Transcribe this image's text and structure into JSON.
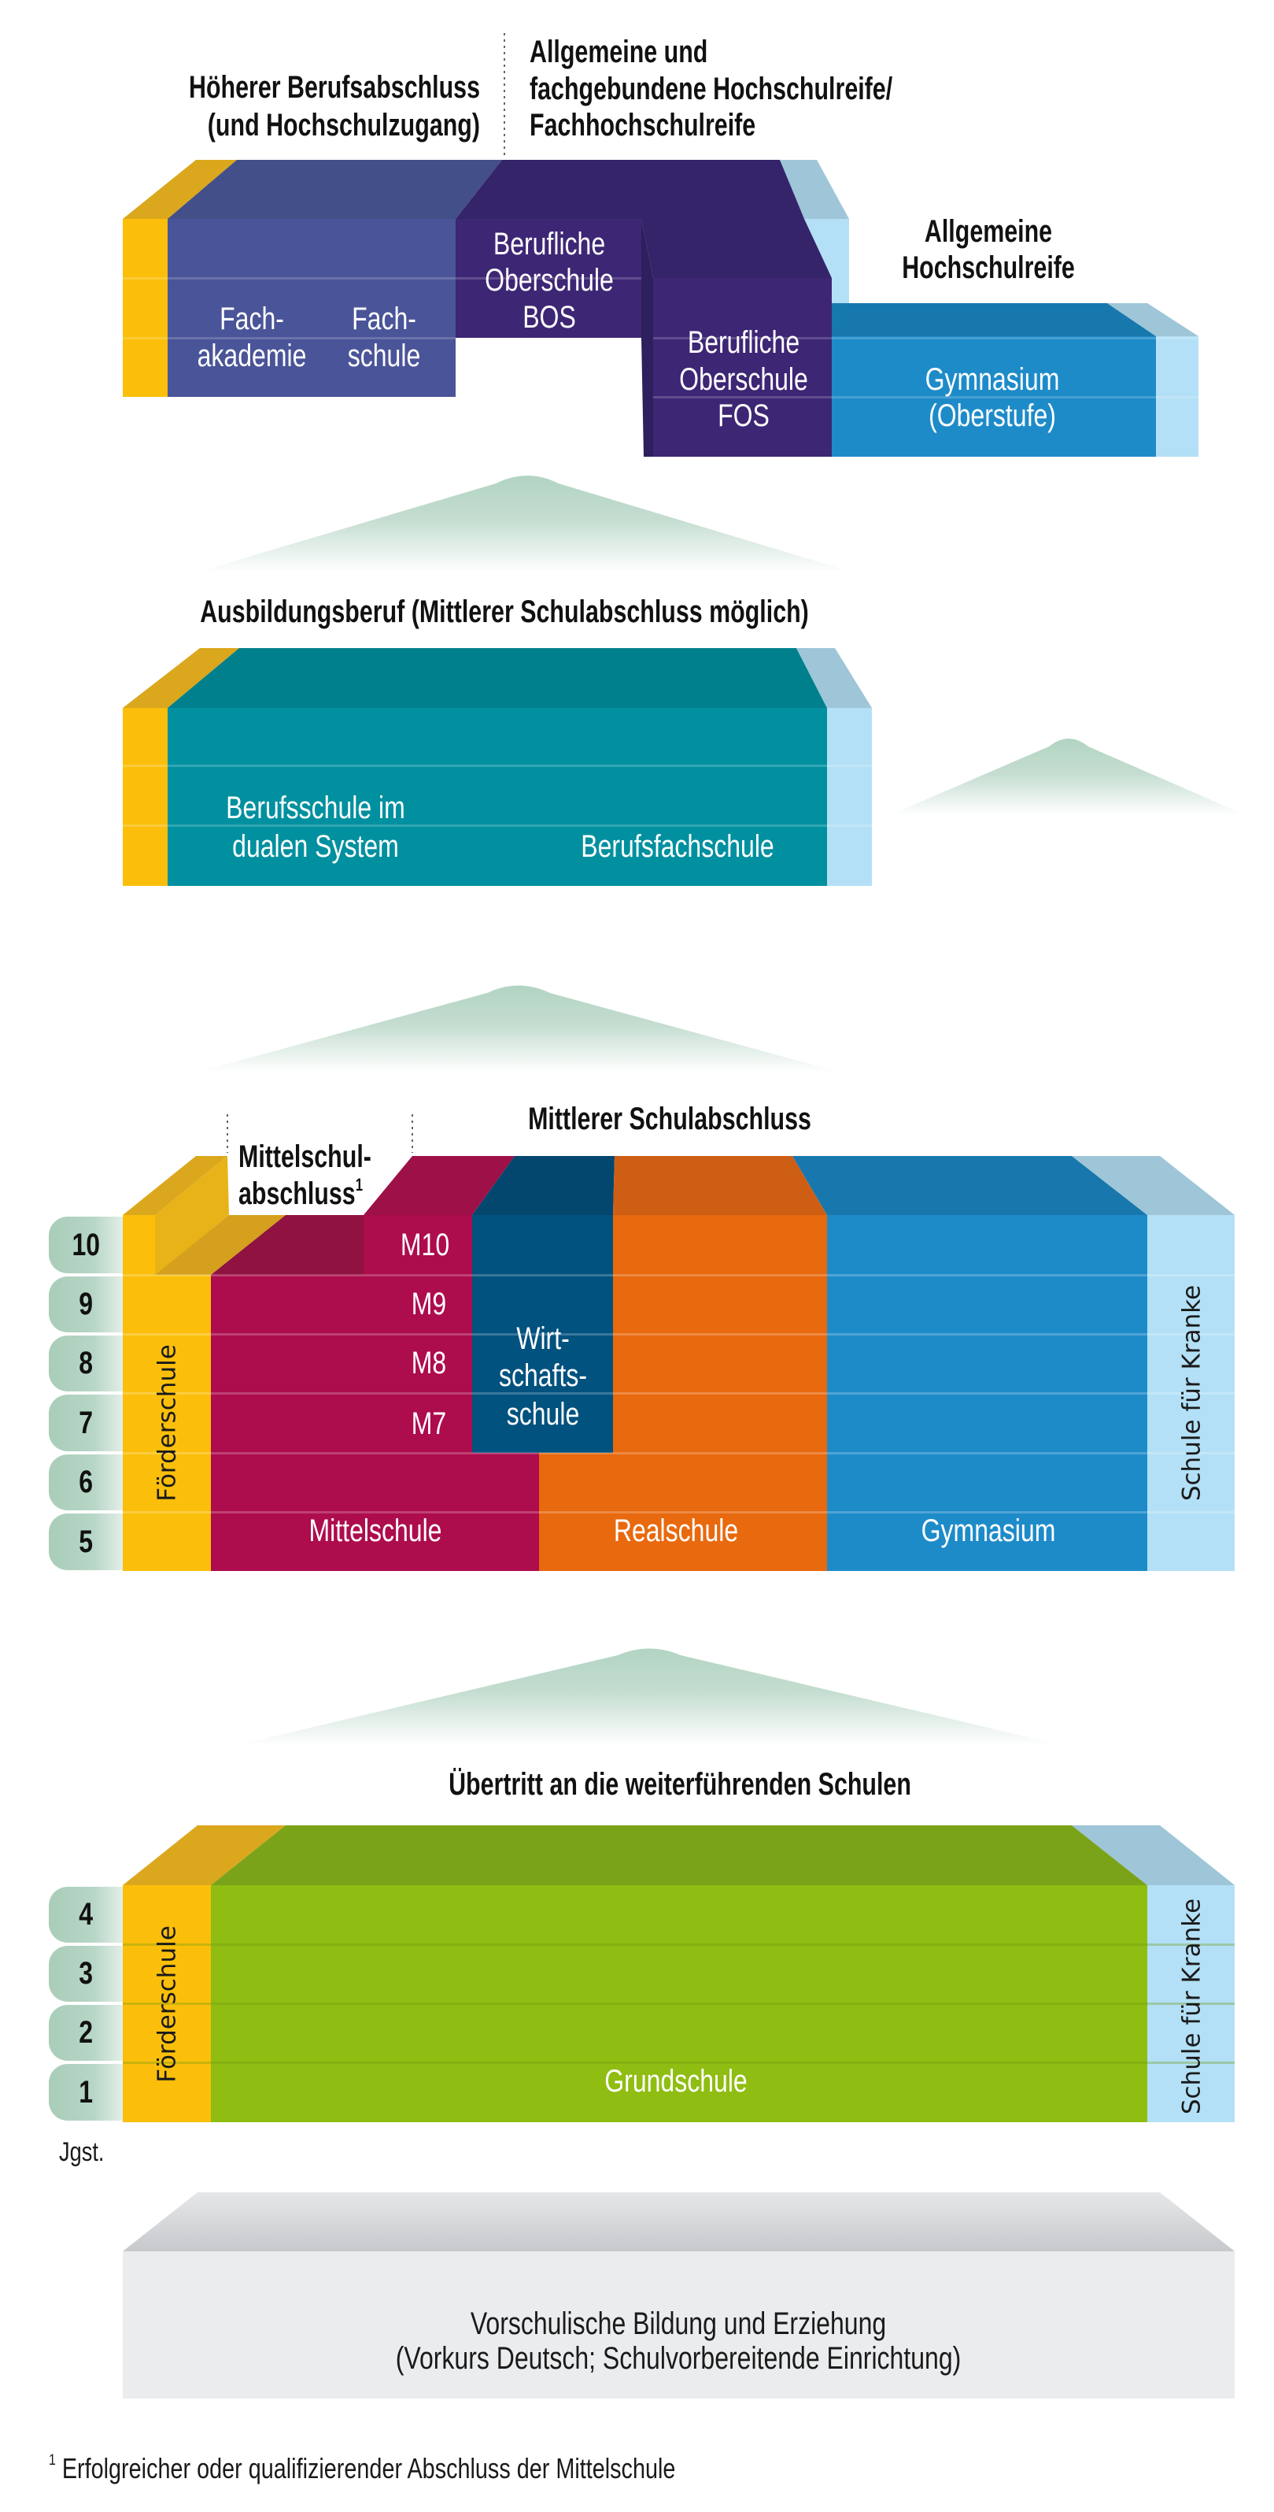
{
  "colors": {
    "foerderschule": "#fbbf0b",
    "fachakademie_fachschule": "#4a5498",
    "berufliche_oberschule": "#3d2674",
    "gymnasium": "#1e8bc9",
    "schule_fuer_kranke": "#b3e0f6",
    "berufsschule": "#00909f",
    "mittelschule": "#ad0c4d",
    "wirtschaftsschule": "#02527f",
    "realschule": "#e8690e",
    "grundschule": "#8fbd12",
    "vorschule": "#ebecee",
    "transition_mound": "#b2d4c2"
  },
  "upper": {
    "heading_left": [
      "Höherer Berufsabschluss",
      "(und Hochschulzugang)"
    ],
    "heading_right": [
      "Allgemeine und",
      "fachgebundene Hochschulreife/",
      "Fachhochschulreife"
    ],
    "heading_gym": [
      "Allgemeine",
      "Hochschulreife"
    ],
    "fachakademie": [
      "Fach-",
      "akademie"
    ],
    "fachschule": [
      "Fach-",
      "schule"
    ],
    "bos": [
      "Berufliche",
      "Oberschule",
      "BOS"
    ],
    "fos": [
      "Berufliche",
      "Oberschule",
      "FOS"
    ],
    "gymnasium": [
      "Gymnasium",
      "(Oberstufe)"
    ]
  },
  "vocational": {
    "heading": "Ausbildungsberuf (Mittlerer Schulabschluss möglich)",
    "berufsschule": [
      "Berufsschule im",
      "dualen System"
    ],
    "berufsfachschule": "Berufsfachschule"
  },
  "secondary": {
    "heading": "Mittlerer Schulabschluss",
    "mittelschulabschluss": [
      "Mittelschul-",
      "abschluss"
    ],
    "footnote_mark": "1",
    "grades": [
      "10",
      "9",
      "8",
      "7",
      "6",
      "5"
    ],
    "m_levels": [
      "M10",
      "M9",
      "M8",
      "M7"
    ],
    "wirtschaftsschule": [
      "Wirt-",
      "schafts-",
      "schule"
    ],
    "mittelschule": "Mittelschule",
    "realschule": "Realschule",
    "gymnasium": "Gymnasium",
    "foerderschule": "Förderschule",
    "schule_fuer_kranke": "Schule für Kranke"
  },
  "primary": {
    "heading": "Übertritt an die weiterführenden Schulen",
    "grades": [
      "4",
      "3",
      "2",
      "1"
    ],
    "grundschule": "Grundschule",
    "foerderschule": "Förderschule",
    "schule_fuer_kranke": "Schule für Kranke",
    "grade_label": "Jgst."
  },
  "preschool": {
    "lines": [
      "Vorschulische Bildung und Erziehung",
      "(Vorkurs Deutsch; Schulvorbereitende Einrichtung)"
    ]
  },
  "footnote": {
    "mark": "1",
    "text": "Erfolgreicher oder qualifizierender Abschluss der Mittelschule"
  }
}
